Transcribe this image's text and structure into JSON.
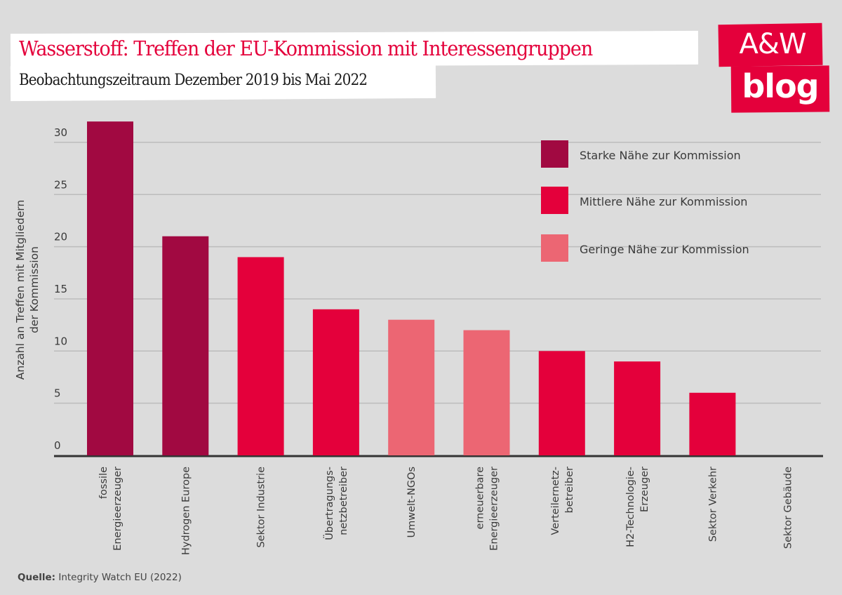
{
  "header": {
    "title": "Wasserstoff: Treffen der EU-Kommission mit Interessengruppen",
    "subtitle": "Beobachtungszeitraum Dezember 2019 bis Mai 2022"
  },
  "logo": {
    "line1": "A&W",
    "line2": "blog",
    "color": "#e4003b"
  },
  "source": {
    "label": "Quelle:",
    "text": " Integrity Watch EU (2022)"
  },
  "chart_data": {
    "type": "bar",
    "title": "Wasserstoff: Treffen der EU-Kommission mit Interessengruppen",
    "subtitle": "Beobachtungszeitraum Dezember 2019 bis Mai 2022",
    "xlabel": "",
    "ylabel": [
      "Anzahl an Treffen mit Mitgliedern",
      "der Kommission"
    ],
    "ylim": [
      0,
      32
    ],
    "yticks": [
      0,
      5,
      10,
      15,
      20,
      25,
      30
    ],
    "grid": true,
    "legend_position": "top-right",
    "categories": [
      [
        "fossile",
        "Energieerzeuger"
      ],
      [
        "Hydrogen Europe"
      ],
      [
        "Sektor Industrie"
      ],
      [
        "Übertragungs-",
        "netzbetreiber"
      ],
      [
        "Umwelt-NGOs"
      ],
      [
        "erneuerbare",
        "Energieerzeuger"
      ],
      [
        "Verteilernetz-",
        "betreiber"
      ],
      [
        "H2-Technologie-",
        "Erzeuger"
      ],
      [
        "Sektor Verkehr"
      ],
      [
        "Sektor Gebäude"
      ]
    ],
    "values": [
      32,
      21,
      19,
      14,
      13,
      12,
      10,
      9,
      6,
      0
    ],
    "groups": [
      "starke",
      "starke",
      "mittlere",
      "mittlere",
      "geringe",
      "geringe",
      "mittlere",
      "mittlere",
      "mittlere",
      "mittlere"
    ],
    "legend": [
      {
        "key": "starke",
        "label": "Starke Nähe zur Kommission",
        "color": "#a10941"
      },
      {
        "key": "mittlere",
        "label": "Mittlere Nähe zur Kommission",
        "color": "#e4003b"
      },
      {
        "key": "geringe",
        "label": "Geringe Nähe zur Kommission",
        "color": "#ec6673"
      }
    ]
  }
}
